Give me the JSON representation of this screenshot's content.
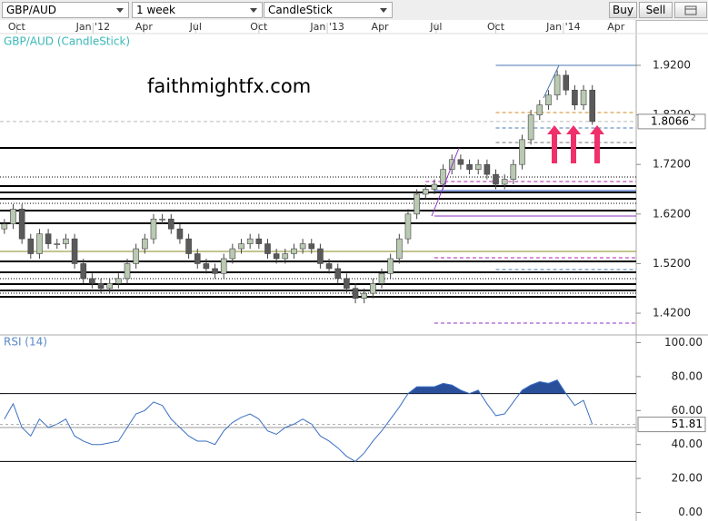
{
  "toolbar": {
    "symbol": "GBP/AUD",
    "period": "1 week",
    "style": "CandleStick",
    "buy": "Buy",
    "sell": "Sell"
  },
  "watermark": "faithmightfx.com",
  "chart_data": [
    {
      "type": "candlestick",
      "title": "GBP/AUD (CandleStick)",
      "xlim": [
        -0.5,
        72
      ],
      "xticks": [
        {
          "value": 1.4,
          "label": "Oct"
        },
        {
          "value": 10.1,
          "label": "Jan '12"
        },
        {
          "value": 15.9,
          "label": "Apr"
        },
        {
          "value": 21.8,
          "label": "Jul"
        },
        {
          "value": 29,
          "label": "Oct"
        },
        {
          "value": 36.8,
          "label": "Jan '13"
        },
        {
          "value": 42.8,
          "label": "Apr"
        },
        {
          "value": 49.2,
          "label": "Jul"
        },
        {
          "value": 56,
          "label": "Oct"
        },
        {
          "value": 63.7,
          "label": "Jan '14"
        },
        {
          "value": 69.7,
          "label": "Apr"
        }
      ],
      "ylim": [
        1.378,
        1.984
      ],
      "yticks": [
        {
          "value": 1.42,
          "label": "1.4200"
        },
        {
          "value": 1.52,
          "label": "1.5200"
        },
        {
          "value": 1.62,
          "label": "1.6200"
        },
        {
          "value": 1.72,
          "label": "1.7200"
        },
        {
          "value": 1.82,
          "label": "1.8200"
        },
        {
          "value": 1.92,
          "label": "1.9200"
        }
      ],
      "up_color": "#b9c9b2",
      "down_color": "#5a5a5a",
      "wick_color": "#444444",
      "open": [
        1.59,
        1.6,
        1.63,
        1.57,
        1.54,
        1.58,
        1.56,
        1.56,
        1.57,
        1.52,
        1.49,
        1.48,
        1.47,
        1.48,
        1.49,
        1.52,
        1.55,
        1.57,
        1.61,
        1.61,
        1.59,
        1.57,
        1.54,
        1.52,
        1.51,
        1.5,
        1.53,
        1.55,
        1.56,
        1.57,
        1.56,
        1.54,
        1.53,
        1.54,
        1.55,
        1.56,
        1.55,
        1.52,
        1.51,
        1.49,
        1.47,
        1.45,
        1.46,
        1.48,
        1.5,
        1.53,
        1.57,
        1.62,
        1.66,
        1.67,
        1.68,
        1.71,
        1.73,
        1.72,
        1.71,
        1.72,
        1.7,
        1.68,
        1.69,
        1.72,
        1.77,
        1.82,
        1.84,
        1.86,
        1.9,
        1.87,
        1.84,
        1.87
      ],
      "high": [
        1.61,
        1.64,
        1.64,
        1.58,
        1.59,
        1.59,
        1.57,
        1.58,
        1.58,
        1.53,
        1.5,
        1.49,
        1.49,
        1.5,
        1.53,
        1.56,
        1.58,
        1.62,
        1.62,
        1.62,
        1.6,
        1.58,
        1.55,
        1.53,
        1.52,
        1.54,
        1.56,
        1.57,
        1.58,
        1.58,
        1.57,
        1.55,
        1.55,
        1.56,
        1.57,
        1.57,
        1.56,
        1.53,
        1.52,
        1.5,
        1.48,
        1.47,
        1.49,
        1.51,
        1.54,
        1.58,
        1.63,
        1.67,
        1.68,
        1.69,
        1.72,
        1.74,
        1.74,
        1.73,
        1.73,
        1.73,
        1.71,
        1.7,
        1.73,
        1.78,
        1.83,
        1.85,
        1.87,
        1.91,
        1.91,
        1.88,
        1.88,
        1.88
      ],
      "low": [
        1.58,
        1.59,
        1.56,
        1.53,
        1.53,
        1.55,
        1.55,
        1.55,
        1.51,
        1.48,
        1.47,
        1.46,
        1.46,
        1.47,
        1.48,
        1.51,
        1.54,
        1.56,
        1.6,
        1.58,
        1.56,
        1.53,
        1.51,
        1.5,
        1.49,
        1.49,
        1.52,
        1.54,
        1.55,
        1.55,
        1.53,
        1.52,
        1.52,
        1.53,
        1.54,
        1.54,
        1.51,
        1.5,
        1.48,
        1.46,
        1.44,
        1.44,
        1.45,
        1.47,
        1.49,
        1.52,
        1.56,
        1.61,
        1.65,
        1.66,
        1.67,
        1.7,
        1.71,
        1.7,
        1.7,
        1.69,
        1.67,
        1.67,
        1.68,
        1.71,
        1.76,
        1.81,
        1.83,
        1.85,
        1.86,
        1.83,
        1.83,
        1.8
      ],
      "close": [
        1.6,
        1.63,
        1.57,
        1.54,
        1.58,
        1.56,
        1.56,
        1.57,
        1.52,
        1.49,
        1.48,
        1.47,
        1.48,
        1.49,
        1.52,
        1.55,
        1.57,
        1.61,
        1.61,
        1.59,
        1.57,
        1.54,
        1.52,
        1.51,
        1.5,
        1.53,
        1.55,
        1.56,
        1.57,
        1.56,
        1.54,
        1.53,
        1.54,
        1.55,
        1.56,
        1.55,
        1.52,
        1.51,
        1.49,
        1.47,
        1.45,
        1.46,
        1.48,
        1.5,
        1.53,
        1.57,
        1.62,
        1.66,
        1.67,
        1.68,
        1.71,
        1.73,
        1.72,
        1.71,
        1.72,
        1.7,
        1.68,
        1.69,
        1.72,
        1.77,
        1.82,
        1.84,
        1.86,
        1.9,
        1.87,
        1.84,
        1.87,
        1.80662
      ],
      "current_price_label": [
        "1.8066",
        "2"
      ],
      "levels": [
        {
          "value": 1.7533,
          "style": "solid",
          "color": "#000000"
        },
        {
          "value": 1.6947,
          "style": "dotted",
          "color": "#000000"
        },
        {
          "value": 1.6764,
          "style": "solid",
          "color": "#000000"
        },
        {
          "value": 1.6636,
          "style": "solid",
          "color": "#000000"
        },
        {
          "value": 1.6508,
          "style": "solid",
          "color": "#000000"
        },
        {
          "value": 1.6416,
          "style": "dotted",
          "color": "#000000"
        },
        {
          "value": 1.627,
          "style": "solid",
          "color": "#000000"
        },
        {
          "value": 1.6013,
          "style": "solid",
          "color": "#000000"
        },
        {
          "value": 1.5445,
          "style": "thin",
          "color": "#8a8a20"
        },
        {
          "value": 1.5244,
          "style": "solid",
          "color": "#000000"
        },
        {
          "value": 1.5024,
          "style": "solid",
          "color": "#000000"
        },
        {
          "value": 1.4896,
          "style": "dotted",
          "color": "#000000"
        },
        {
          "value": 1.4786,
          "style": "solid",
          "color": "#000000"
        },
        {
          "value": 1.4658,
          "style": "solid",
          "color": "#000000"
        },
        {
          "value": 1.4603,
          "style": "dotted",
          "color": "#000000"
        },
        {
          "value": 1.453,
          "style": "solid",
          "color": "#000000"
        },
        {
          "value": 1.92,
          "style": "thin",
          "color": "#4a7ab0",
          "from": 56
        },
        {
          "value": 1.8248,
          "style": "dashed",
          "color": "#d08a20",
          "from": 56
        },
        {
          "value": 1.7936,
          "style": "dashed",
          "color": "#4a7ab0",
          "from": 56
        },
        {
          "value": 1.7643,
          "style": "dashed",
          "color": "#777777",
          "from": 56
        },
        {
          "value": 1.6856,
          "style": "dashed",
          "color": "#b020b0",
          "from": 48
        },
        {
          "value": 1.6673,
          "style": "thin",
          "color": "#2050c0",
          "from": 49
        },
        {
          "value": 1.616,
          "style": "thin",
          "color": "#9030c0",
          "from": 49
        },
        {
          "value": 1.5317,
          "style": "dashed",
          "color": "#b020b0",
          "from": 49
        },
        {
          "value": 1.5079,
          "style": "dashed",
          "color": "#4a7ab0",
          "from": 56
        },
        {
          "value": 1.3999,
          "style": "dashed",
          "color": "#9030c0",
          "from": 49
        }
      ]
    },
    {
      "type": "line",
      "title": "RSI (14)",
      "xlim": [
        -0.5,
        72
      ],
      "ylim": [
        -4,
        104
      ],
      "yticks": [
        {
          "value": 0,
          "label": "0.00"
        },
        {
          "value": 20,
          "label": "20.00"
        },
        {
          "value": 40,
          "label": "40.00"
        },
        {
          "value": 60,
          "label": "60.00"
        },
        {
          "value": 80,
          "label": "80.00"
        },
        {
          "value": 100,
          "label": "100.00"
        }
      ],
      "levels": [
        {
          "value": 70,
          "color": "#000000"
        },
        {
          "value": 50,
          "color": "#999999"
        },
        {
          "value": 30,
          "color": "#000000"
        }
      ],
      "overbought_fill": "#2a4f9a",
      "series": [
        {
          "name": "RSI (14)",
          "color": "#3a6fc4",
          "values": [
            55,
            64,
            50,
            45,
            55,
            50,
            52,
            55,
            45,
            42,
            40,
            40,
            41,
            42,
            50,
            58,
            60,
            65,
            63,
            55,
            50,
            45,
            42,
            42,
            40,
            48,
            53,
            56,
            58,
            55,
            48,
            46,
            50,
            52,
            55,
            52,
            45,
            42,
            38,
            33,
            30,
            35,
            42,
            48,
            55,
            62,
            70,
            74,
            74,
            74,
            76,
            75,
            72,
            70,
            72,
            64,
            57,
            58,
            65,
            72,
            75,
            77,
            76,
            78,
            70,
            63,
            66,
            51.81
          ]
        }
      ]
    }
  ]
}
